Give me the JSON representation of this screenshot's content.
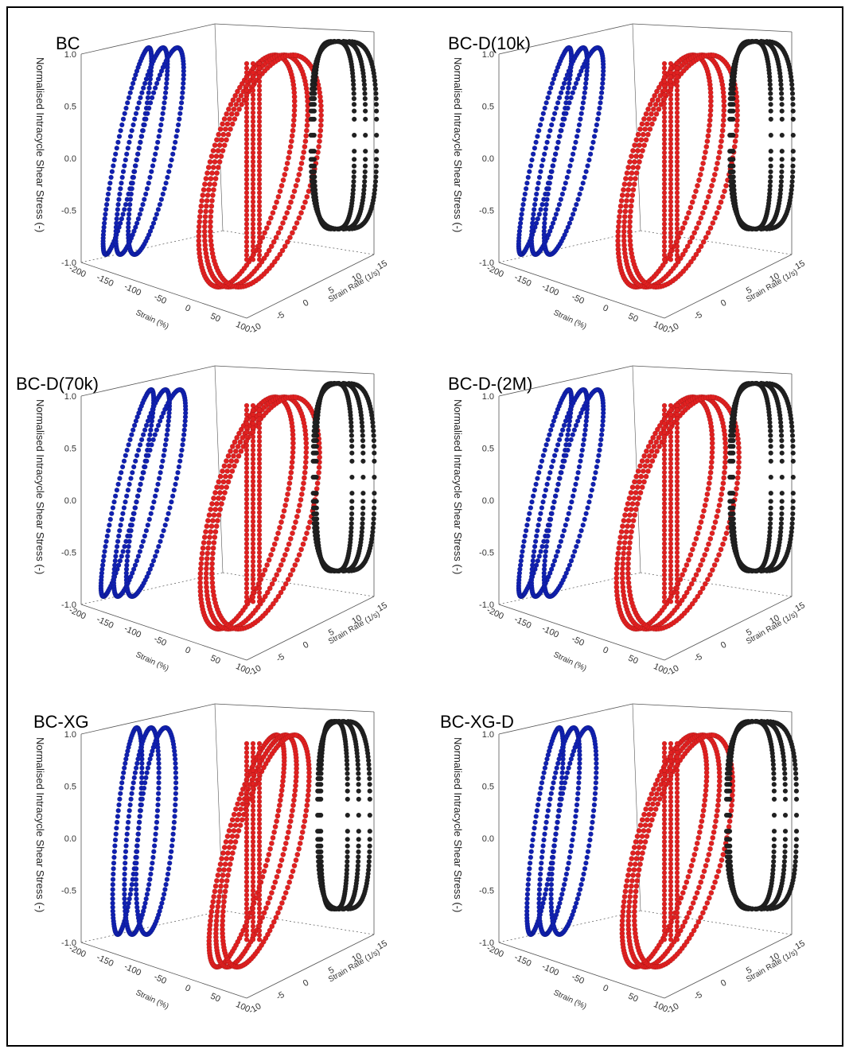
{
  "figure": {
    "z_axis_label": "Normalised Intracycle Shear Stress (-)",
    "x_axis_label": "Strain (%)",
    "y_axis_label": "Strain Rate (1/s)",
    "z_ticks": [
      "-1.0",
      "-0.5",
      "0.0",
      "0.5",
      "1.0"
    ],
    "x_ticks": [
      "-200",
      "-150",
      "-100",
      "-50",
      "0",
      "50",
      "100"
    ],
    "y_ticks": [
      "-10",
      "-5",
      "0",
      "5",
      "10",
      "15"
    ],
    "series_colors": {
      "blue": "#1020b0",
      "red": "#e02020",
      "black": "#202020"
    }
  },
  "chart_data": [
    {
      "type": "scatter",
      "title": "BC",
      "zlim": [
        -1.0,
        1.0
      ],
      "xlim": [
        -200,
        100
      ],
      "ylim": [
        -10,
        15
      ],
      "shape": {
        "blue_tilt": 0.45,
        "red_open": 0.9,
        "black_width": 0.9
      }
    },
    {
      "type": "scatter",
      "title": "BC-D(10k)",
      "zlim": [
        -1.0,
        1.0
      ],
      "xlim": [
        -200,
        100
      ],
      "ylim": [
        -10,
        15
      ],
      "shape": {
        "blue_tilt": 0.5,
        "red_open": 0.85,
        "black_width": 0.85
      }
    },
    {
      "type": "scatter",
      "title": "BC-D(70k)",
      "zlim": [
        -1.0,
        1.0
      ],
      "xlim": [
        -200,
        100
      ],
      "ylim": [
        -10,
        15
      ],
      "shape": {
        "blue_tilt": 0.5,
        "red_open": 0.85,
        "black_width": 0.8
      }
    },
    {
      "type": "scatter",
      "title": "BC-D-(2M)",
      "zlim": [
        -1.0,
        1.0
      ],
      "xlim": [
        -200,
        100
      ],
      "ylim": [
        -10,
        15
      ],
      "shape": {
        "blue_tilt": 0.5,
        "red_open": 0.9,
        "black_width": 0.85
      }
    },
    {
      "type": "scatter",
      "title": "BC-XG",
      "zlim": [
        -1.0,
        1.0
      ],
      "xlim": [
        -200,
        100
      ],
      "ylim": [
        -10,
        15
      ],
      "shape": {
        "blue_tilt": 0.2,
        "red_open": 0.5,
        "black_width": 0.6
      }
    },
    {
      "type": "scatter",
      "title": "BC-XG-D",
      "zlim": [
        -1.0,
        1.0
      ],
      "xlim": [
        -200,
        100
      ],
      "ylim": [
        -10,
        15
      ],
      "shape": {
        "blue_tilt": 0.3,
        "red_open": 0.7,
        "black_width": 1.0
      }
    }
  ]
}
